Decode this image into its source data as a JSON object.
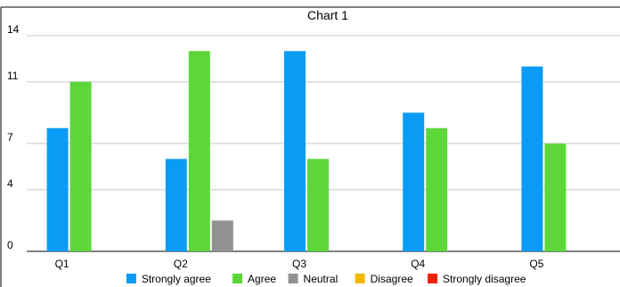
{
  "chart_data": {
    "type": "bar",
    "title": "Chart 1",
    "categories": [
      "Q1",
      "Q2",
      "Q3",
      "Q4",
      "Q5"
    ],
    "series": [
      {
        "name": "Strongly agree",
        "color": "#0a9cf5",
        "values": [
          8,
          6,
          13,
          9,
          12
        ]
      },
      {
        "name": "Agree",
        "color": "#5dd63a",
        "values": [
          11,
          13,
          6,
          8,
          7
        ]
      },
      {
        "name": "Neutral",
        "color": "#919191",
        "values": [
          0,
          2,
          0,
          0,
          0
        ]
      },
      {
        "name": "Disagree",
        "color": "#f5b800",
        "values": [
          0,
          0,
          0,
          0,
          0
        ]
      },
      {
        "name": "Strongly disagree",
        "color": "#ee220c",
        "values": [
          0,
          0,
          0,
          0,
          0
        ]
      }
    ],
    "yticks": [
      0,
      4,
      7,
      11,
      14
    ],
    "ylim": [
      0,
      14
    ],
    "grid": true,
    "legend_position": "bottom"
  }
}
